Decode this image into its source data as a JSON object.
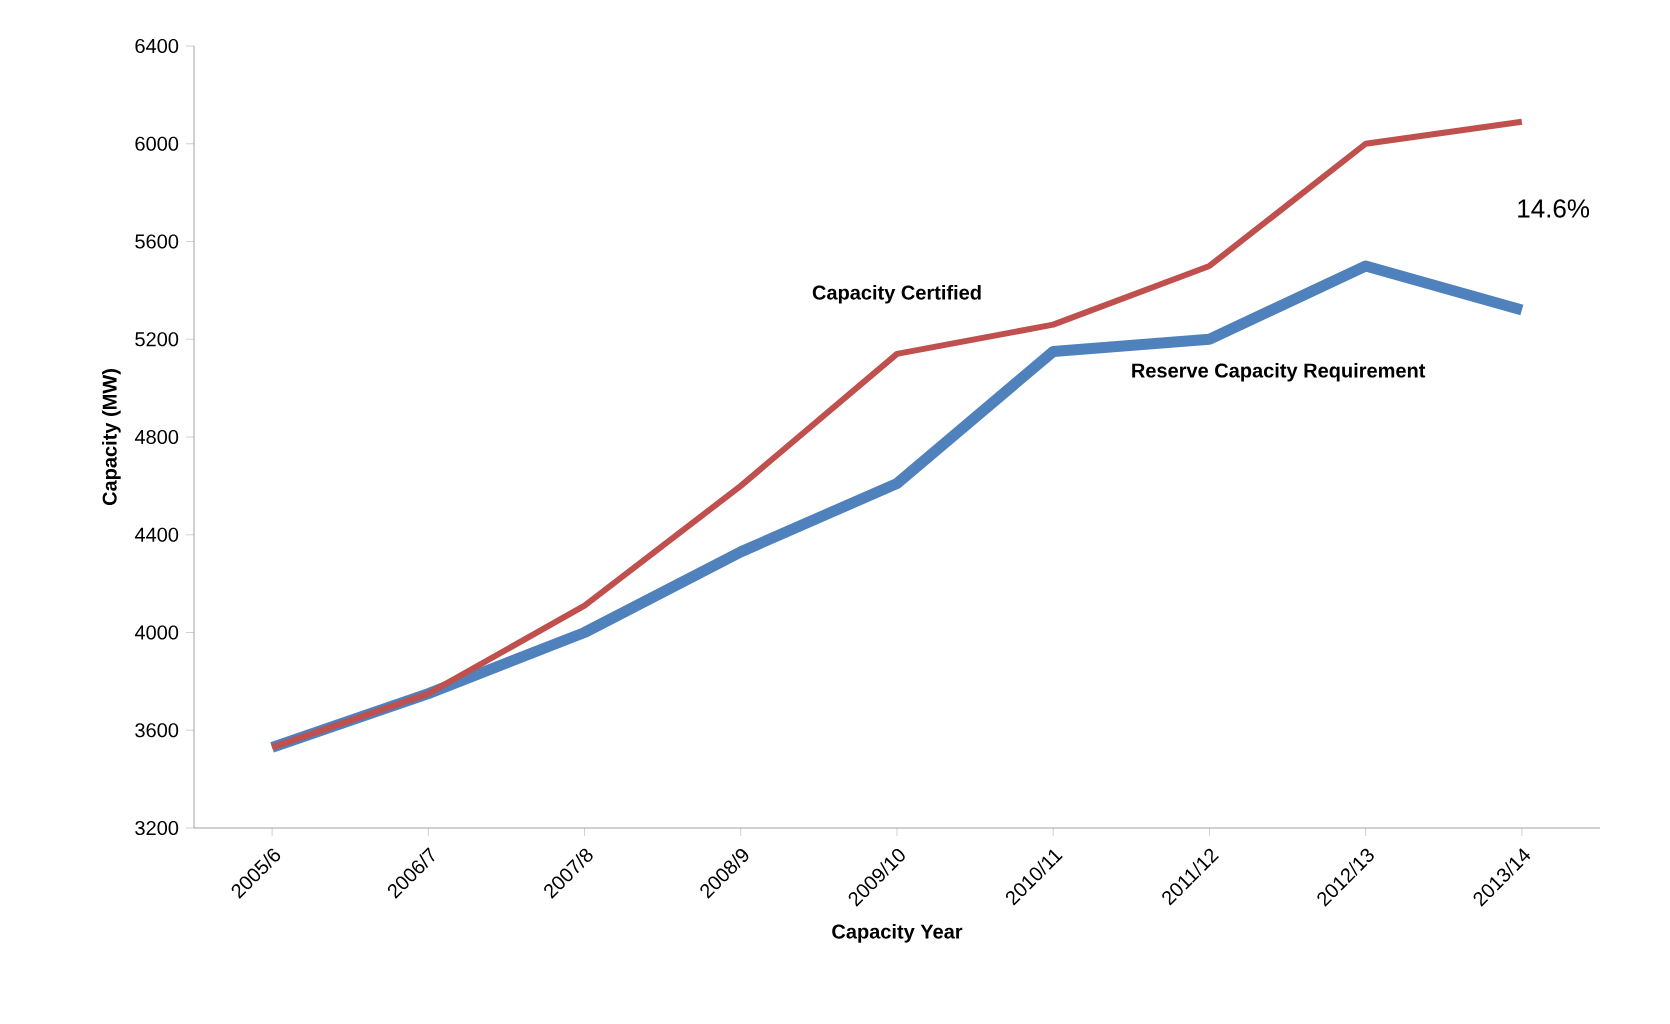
{
  "chart_data": {
    "type": "line",
    "xlabel": "Capacity Year",
    "ylabel": "Capacity (MW)",
    "categories": [
      "2005/6",
      "2006/7",
      "2007/8",
      "2008/9",
      "2009/10",
      "2010/11",
      "2011/12",
      "2012/13",
      "2013/14"
    ],
    "series": [
      {
        "name": "Capacity Certified",
        "color": "#c0504d",
        "values": [
          3530,
          3750,
          4110,
          4600,
          5140,
          5260,
          5500,
          6000,
          6090
        ]
      },
      {
        "name": "Reserve Capacity Requirement",
        "color": "#4f81bd",
        "values": [
          3530,
          3750,
          4000,
          4330,
          4610,
          5150,
          5200,
          5500,
          5320
        ]
      }
    ],
    "ylim": [
      3200,
      6400
    ],
    "yticks": [
      3200,
      3600,
      4000,
      4400,
      4800,
      5200,
      5600,
      6000,
      6400
    ],
    "grid": false,
    "legend": false,
    "marker": "none",
    "line_style": "solid",
    "annotations": [
      "14.6%"
    ]
  }
}
